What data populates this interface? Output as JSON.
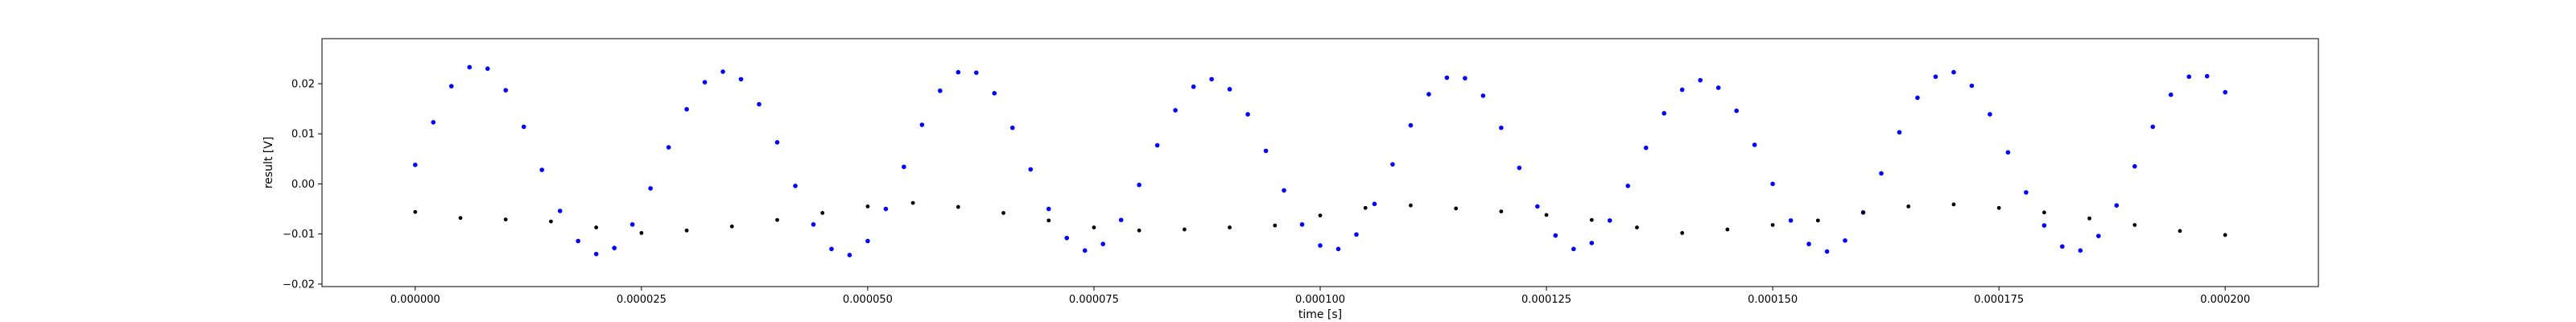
{
  "chart_data": {
    "type": "scatter",
    "title": "",
    "xlabel": "time [s]",
    "ylabel": "result [V]",
    "xlim": [
      -1.03e-05,
      0.0002103
    ],
    "ylim": [
      -0.0205,
      0.029
    ],
    "grid": false,
    "x_ticks": [
      {
        "value": 0.0,
        "label": "0.000000"
      },
      {
        "value": 2.5e-05,
        "label": "0.000025"
      },
      {
        "value": 5e-05,
        "label": "0.000050"
      },
      {
        "value": 7.5e-05,
        "label": "0.000075"
      },
      {
        "value": 0.0001,
        "label": "0.000100"
      },
      {
        "value": 0.000125,
        "label": "0.000125"
      },
      {
        "value": 0.00015,
        "label": "0.000150"
      },
      {
        "value": 0.000175,
        "label": "0.000175"
      },
      {
        "value": 0.0002,
        "label": "0.000200"
      }
    ],
    "y_ticks": [
      {
        "value": -0.02,
        "label": "−0.02"
      },
      {
        "value": -0.01,
        "label": "−0.01"
      },
      {
        "value": 0.0,
        "label": "0.00"
      },
      {
        "value": 0.01,
        "label": "0.01"
      },
      {
        "value": 0.02,
        "label": "0.02"
      }
    ],
    "series": [
      {
        "color": "#0000ff",
        "marker": "dot",
        "x": [
          0.0,
          2e-06,
          4e-06,
          6e-06,
          8e-06,
          1e-05,
          1.2e-05,
          1.4e-05,
          1.6e-05,
          1.8e-05,
          2e-05,
          2.2e-05,
          2.4e-05,
          2.6e-05,
          2.8e-05,
          3e-05,
          3.2e-05,
          3.4e-05,
          3.6e-05,
          3.8e-05,
          4e-05,
          4.2e-05,
          4.4e-05,
          4.6e-05,
          4.8e-05,
          5e-05,
          5.2e-05,
          5.4e-05,
          5.6e-05,
          5.8e-05,
          6e-05,
          6.2e-05,
          6.4e-05,
          6.6e-05,
          6.8e-05,
          7e-05,
          7.2e-05,
          7.4e-05,
          7.6e-05,
          7.8e-05,
          8e-05,
          8.2e-05,
          8.4e-05,
          8.6e-05,
          8.8e-05,
          9e-05,
          9.2e-05,
          9.4e-05,
          9.6e-05,
          9.8e-05,
          0.0001,
          0.000102,
          0.000104,
          0.000106,
          0.000108,
          0.00011,
          0.000112,
          0.000114,
          0.000116,
          0.000118,
          0.00012,
          0.000122,
          0.000124,
          0.000126,
          0.000128,
          0.00013,
          0.000132,
          0.000134,
          0.000136,
          0.000138,
          0.00014,
          0.000142,
          0.000144,
          0.000146,
          0.000148,
          0.00015,
          0.000152,
          0.000154,
          0.000156,
          0.000158,
          0.00016,
          0.000162,
          0.000164,
          0.000166,
          0.000168,
          0.00017,
          0.000172,
          0.000174,
          0.000176,
          0.000178,
          0.00018,
          0.000182,
          0.000184,
          0.000186,
          0.000188,
          0.00019,
          0.000192,
          0.000194,
          0.000196,
          0.000198,
          0.0002
        ],
        "y": [
          0.0038,
          0.0123,
          0.0195,
          0.0233,
          0.023,
          0.0187,
          0.0114,
          0.0028,
          -0.0054,
          -0.0114,
          -0.014,
          -0.0128,
          -0.0081,
          -0.0009,
          0.0073,
          0.0149,
          0.0203,
          0.0224,
          0.0209,
          0.0159,
          0.0083,
          -0.0004,
          -0.0081,
          -0.013,
          -0.0142,
          -0.0114,
          -0.005,
          0.0034,
          0.0118,
          0.0186,
          0.0223,
          0.0222,
          0.0181,
          0.0112,
          0.0029,
          -0.005,
          -0.0108,
          -0.0133,
          -0.012,
          -0.0072,
          -0.0002,
          0.0077,
          0.0147,
          0.0194,
          0.0209,
          0.0189,
          0.0139,
          0.0066,
          -0.0013,
          -0.0081,
          -0.0123,
          -0.013,
          -0.0101,
          -0.004,
          0.0039,
          0.0117,
          0.0179,
          0.0212,
          0.0211,
          0.0176,
          0.0112,
          0.0032,
          -0.0045,
          -0.0103,
          -0.013,
          -0.0118,
          -0.0073,
          -0.0004,
          0.0072,
          0.0141,
          0.0188,
          0.0207,
          0.0192,
          0.0146,
          0.0078,
          0.0,
          -0.0073,
          -0.012,
          -0.0135,
          -0.0113,
          -0.0057,
          0.0021,
          0.0103,
          0.0172,
          0.0214,
          0.0223,
          0.0196,
          0.0139,
          0.0063,
          -0.0017,
          -0.0083,
          -0.0125,
          -0.0133,
          -0.0104,
          -0.0043,
          0.0035,
          0.0114,
          0.0178,
          0.0214,
          0.0215,
          0.0183
        ]
      },
      {
        "color": "#000000",
        "marker": "dot",
        "x": [
          0.0,
          5e-06,
          1e-05,
          1.5e-05,
          2e-05,
          2.5e-05,
          3e-05,
          3.5e-05,
          4e-05,
          4.5e-05,
          5e-05,
          5.5e-05,
          6e-05,
          6.5e-05,
          7e-05,
          7.5e-05,
          8e-05,
          8.5e-05,
          9e-05,
          9.5e-05,
          0.0001,
          0.000105,
          0.00011,
          0.000115,
          0.00012,
          0.000125,
          0.00013,
          0.000135,
          0.00014,
          0.000145,
          0.00015,
          0.000155,
          0.00016,
          0.000165,
          0.00017,
          0.000175,
          0.00018,
          0.000185,
          0.00019,
          0.000195,
          0.0002
        ],
        "y": [
          -0.0056,
          -0.0068,
          -0.0071,
          -0.0075,
          -0.0087,
          -0.0098,
          -0.0093,
          -0.0085,
          -0.0072,
          -0.0058,
          -0.0045,
          -0.0038,
          -0.0046,
          -0.0058,
          -0.0073,
          -0.0087,
          -0.0093,
          -0.0091,
          -0.0087,
          -0.0083,
          -0.0063,
          -0.0048,
          -0.0043,
          -0.0049,
          -0.0055,
          -0.0062,
          -0.0072,
          -0.0087,
          -0.0098,
          -0.0091,
          -0.0082,
          -0.0073,
          -0.0057,
          -0.0045,
          -0.0041,
          -0.0048,
          -0.0057,
          -0.0069,
          -0.0082,
          -0.0094,
          -0.0102
        ]
      }
    ]
  }
}
